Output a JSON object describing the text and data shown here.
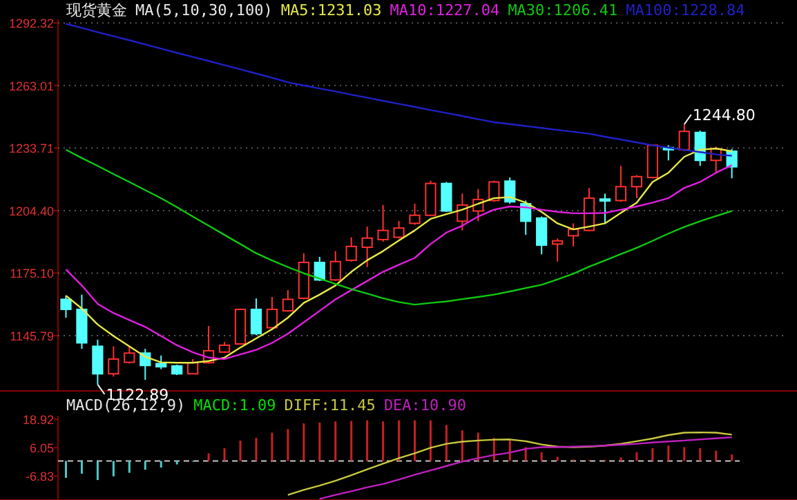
{
  "chart_data": [
    {
      "type": "candlestick",
      "title": "现货黄金",
      "subtitle": "MA(5,10,30,100)",
      "categories": [
        null,
        null,
        null,
        null,
        null,
        null,
        null,
        null,
        null,
        null,
        null,
        null,
        null,
        null,
        null,
        null,
        null,
        null,
        null,
        null,
        null,
        null,
        null,
        null,
        null,
        null,
        null,
        null,
        null,
        null,
        null,
        null,
        null,
        null,
        null,
        null,
        null,
        null,
        null,
        null,
        null,
        null,
        null
      ],
      "ohlc": [
        [
          1162.8,
          1164.6,
          1154.2,
          1158.1
        ],
        [
          1158.1,
          1165.0,
          1139.6,
          1142.4
        ],
        [
          1140.8,
          1143.9,
          1122.89,
          1127.9
        ],
        [
          1127.9,
          1140.8,
          1126.6,
          1134.8
        ],
        [
          1133.3,
          1140.8,
          1132.7,
          1137.6
        ],
        [
          1137.6,
          1139.6,
          1125.1,
          1131.8
        ],
        [
          1132.7,
          1136.5,
          1130.1,
          1131.2
        ],
        [
          1131.6,
          1132.2,
          1127.3,
          1127.9
        ],
        [
          1127.9,
          1134.8,
          1127.7,
          1133.1
        ],
        [
          1133.1,
          1150.3,
          1132.7,
          1138.7
        ],
        [
          1138.1,
          1142.8,
          1137.6,
          1141.3
        ],
        [
          1141.9,
          1158.5,
          1141.7,
          1158.1
        ],
        [
          1158.1,
          1163.2,
          1146.0,
          1146.7
        ],
        [
          1149.5,
          1163.9,
          1149.2,
          1158.1
        ],
        [
          1157.4,
          1167.1,
          1157.0,
          1162.8
        ],
        [
          1163.3,
          1184.4,
          1162.8,
          1180.1
        ],
        [
          1180.1,
          1182.7,
          1171.4,
          1171.9
        ],
        [
          1171.9,
          1185.4,
          1171.4,
          1180.5
        ],
        [
          1181.1,
          1191.9,
          1180.5,
          1187.6
        ],
        [
          1187.2,
          1196.9,
          1177.9,
          1191.5
        ],
        [
          1190.8,
          1207.0,
          1189.8,
          1195.1
        ],
        [
          1191.9,
          1199.5,
          1191.3,
          1196.2
        ],
        [
          1198.4,
          1207.6,
          1197.7,
          1202.2
        ],
        [
          1202.2,
          1218.4,
          1202.0,
          1217.1
        ],
        [
          1217.1,
          1217.8,
          1203.8,
          1204.2
        ],
        [
          1199.4,
          1212.4,
          1195.1,
          1207.0
        ],
        [
          1204.2,
          1214.5,
          1199.4,
          1209.6
        ],
        [
          1209.1,
          1218.4,
          1208.5,
          1217.8
        ],
        [
          1218.2,
          1219.9,
          1207.6,
          1208.5
        ],
        [
          1207.6,
          1209.1,
          1193.0,
          1199.4
        ],
        [
          1200.9,
          1201.6,
          1183.9,
          1188.2
        ],
        [
          1188.7,
          1191.3,
          1180.5,
          1190.2
        ],
        [
          1192.6,
          1198.4,
          1187.6,
          1195.6
        ],
        [
          1195.1,
          1215.0,
          1194.7,
          1210.2
        ],
        [
          1209.8,
          1212.4,
          1198.4,
          1208.9
        ],
        [
          1209.1,
          1225.3,
          1208.5,
          1215.6
        ],
        [
          1215.6,
          1221.0,
          1210.2,
          1220.3
        ],
        [
          1219.9,
          1235.4,
          1219.5,
          1235.0
        ],
        [
          1233.9,
          1235.0,
          1227.9,
          1232.9
        ],
        [
          1232.9,
          1244.8,
          1232.2,
          1241.5
        ],
        [
          1241.0,
          1241.9,
          1225.3,
          1227.9
        ],
        [
          1227.9,
          1234.4,
          1222.1,
          1233.3
        ],
        [
          1232.2,
          1233.3,
          1219.5,
          1224.9
        ]
      ],
      "series": [
        {
          "type": "line",
          "name": "MA5:1231.03",
          "color": "#e8e84a",
          "values": [
            1164.5,
            1158.5,
            1151.0,
            1145.6,
            1140.8,
            1135.9,
            1133.3,
            1133.1,
            1133.1,
            1133.9,
            1135.5,
            1140.2,
            1144.5,
            1148.8,
            1154.2,
            1161.1,
            1165.0,
            1169.3,
            1175.7,
            1181.1,
            1185.4,
            1190.4,
            1195.1,
            1200.5,
            1202.7,
            1204.8,
            1207.6,
            1210.2,
            1210.7,
            1208.1,
            1203.8,
            1198.4,
            1195.6,
            1196.9,
            1198.4,
            1203.3,
            1208.1,
            1217.8,
            1222.1,
            1229.6,
            1232.9,
            1233.5,
            1232.2
          ]
        },
        {
          "type": "line",
          "name": "MA10:1227.04",
          "color": "#e020e0",
          "values": [
            1176.8,
            1169.3,
            1160.7,
            1156.4,
            1153.1,
            1149.9,
            1145.6,
            1141.3,
            1138.0,
            1135.5,
            1134.8,
            1137.0,
            1139.1,
            1142.4,
            1146.7,
            1152.0,
            1157.4,
            1162.8,
            1167.1,
            1171.4,
            1175.7,
            1179.0,
            1182.2,
            1188.7,
            1194.1,
            1197.3,
            1201.6,
            1204.8,
            1206.3,
            1205.9,
            1204.8,
            1203.8,
            1203.1,
            1203.1,
            1203.3,
            1204.8,
            1206.3,
            1208.1,
            1210.2,
            1215.0,
            1217.8,
            1222.1,
            1225.7
          ]
        },
        {
          "type": "line",
          "name": "MA30:1206.41",
          "color": "#10c810",
          "values": [
            1232.9,
            1229.0,
            1225.3,
            1221.5,
            1217.8,
            1214.0,
            1210.2,
            1206.0,
            1201.6,
            1197.3,
            1193.0,
            1188.7,
            1184.4,
            1181.0,
            1177.9,
            1175.0,
            1172.5,
            1170.0,
            1167.6,
            1165.5,
            1163.3,
            1161.5,
            1160.3,
            1161.1,
            1161.8,
            1162.9,
            1163.9,
            1165.0,
            1166.5,
            1168.1,
            1169.6,
            1172.1,
            1174.8,
            1178.1,
            1181.0,
            1184.0,
            1186.9,
            1190.2,
            1193.6,
            1196.7,
            1199.4,
            1201.8,
            1204.2
          ]
        },
        {
          "type": "line",
          "name": "MA100:1228.84",
          "color": "#2020c8",
          "values": [
            1291.9,
            1290.0,
            1288.0,
            1286.1,
            1284.2,
            1282.2,
            1280.3,
            1278.3,
            1276.4,
            1274.5,
            1272.5,
            1270.6,
            1268.6,
            1266.6,
            1264.5,
            1263.0,
            1261.6,
            1260.2,
            1258.7,
            1257.3,
            1255.8,
            1254.4,
            1253.0,
            1251.5,
            1250.1,
            1248.7,
            1247.2,
            1245.8,
            1244.9,
            1244.0,
            1243.1,
            1242.2,
            1241.3,
            1240.4,
            1239.0,
            1237.7,
            1236.3,
            1235.0,
            1233.9,
            1232.8,
            1231.8,
            1230.7,
            1230.1
          ]
        }
      ],
      "ylim": [
        1119.9,
        1294.0
      ],
      "yticks": [
        1292.32,
        1263.01,
        1233.71,
        {
          "value": 1204.4,
          "label": "1204.40"
        },
        {
          "value": 1175.1,
          "label": "1175.10"
        },
        1145.79
      ],
      "annotations": [
        "1244.80",
        "1122.89"
      ],
      "grid": "y",
      "legend": "top",
      "tick_labels": "y"
    },
    {
      "type": "bar",
      "title": "MACD(26,12,9)",
      "categories": [
        null,
        null,
        null,
        null,
        null,
        null,
        null,
        null,
        null,
        null,
        null,
        null,
        null,
        null,
        null,
        null,
        null,
        null,
        null,
        null,
        null,
        null,
        null,
        null,
        null,
        null,
        null,
        null,
        null,
        null,
        null,
        null,
        null,
        null,
        null,
        null,
        null,
        null,
        null,
        null,
        null,
        null,
        null
      ],
      "series": [
        {
          "type": "bar",
          "name": "MACD:1.09",
          "color": "#00e000",
          "values": [
            -7.7,
            -5.8,
            -8.7,
            -7.0,
            -5.4,
            -4.0,
            -3.0,
            -1.6,
            -0.3,
            3.5,
            5.8,
            9.3,
            10.5,
            12.9,
            14.5,
            17.1,
            17.5,
            18.0,
            18.2,
            18.5,
            18.0,
            18.5,
            18.5,
            18.5,
            16.4,
            14.0,
            12.9,
            10.5,
            9.3,
            6.3,
            4.0,
            1.9,
            0.7,
            0.5,
            0.5,
            1.6,
            4.0,
            5.8,
            7.0,
            6.3,
            5.8,
            4.7,
            3.0
          ],
          "colors": [
            "#50c8c8",
            "#50c8c8",
            "#50c8c8",
            "#50c8c8",
            "#50c8c8",
            "#50c8c8",
            "#50c8c8",
            "#50c8c8",
            "#50c8c8",
            "#c82020",
            "#c82020",
            "#c82020",
            "#c82020",
            "#c82020",
            "#c82020",
            "#c82020",
            "#c82020",
            "#c82020",
            "#c82020",
            "#c82020",
            "#c82020",
            "#c82020",
            "#c82020",
            "#c82020",
            "#c82020",
            "#c82020",
            "#c82020",
            "#c82020",
            "#c82020",
            "#c82020",
            "#c82020",
            "#c82020",
            "#c82020",
            "#c82020",
            "#c82020",
            "#c82020",
            "#c82020",
            "#c82020",
            "#c82020",
            "#c82020",
            "#c82020",
            "#c82020",
            "#c82020"
          ]
        },
        {
          "type": "line",
          "name": "DIFF:11.45",
          "color": "#c8c840",
          "values": [
            null,
            null,
            null,
            null,
            null,
            null,
            null,
            null,
            null,
            null,
            null,
            null,
            null,
            null,
            -15.5,
            -13.2,
            -11.2,
            -9.0,
            -6.5,
            -3.8,
            -1.2,
            1.3,
            3.5,
            6.0,
            7.8,
            8.8,
            9.3,
            9.7,
            9.8,
            9.0,
            7.5,
            6.5,
            6.3,
            6.5,
            7.0,
            7.8,
            9.0,
            10.2,
            11.8,
            12.9,
            13.0,
            12.9,
            12.0
          ]
        },
        {
          "type": "line",
          "name": "DEA:10.90",
          "color": "#c020c0",
          "values": [
            null,
            null,
            null,
            null,
            null,
            null,
            null,
            null,
            null,
            null,
            null,
            null,
            null,
            null,
            null,
            null,
            -17.3,
            -15.5,
            -13.8,
            -12.0,
            -10.5,
            -8.5,
            -6.3,
            -4.3,
            -2.3,
            -0.3,
            1.3,
            2.7,
            3.8,
            5.5,
            6.3,
            6.3,
            6.5,
            6.7,
            7.0,
            7.4,
            7.8,
            8.4,
            8.9,
            9.3,
            9.8,
            10.3,
            10.8
          ]
        }
      ],
      "ref_lines": [
        {
          "axis": "y",
          "value": 0,
          "color": "#c8c8c8",
          "line_style": "dashed"
        }
      ],
      "ylim": [
        -17.8,
        20.6
      ],
      "yticks": [
        18.92,
        6.05,
        -6.83
      ],
      "grid": false,
      "legend": "top",
      "tick_labels": "y"
    }
  ]
}
